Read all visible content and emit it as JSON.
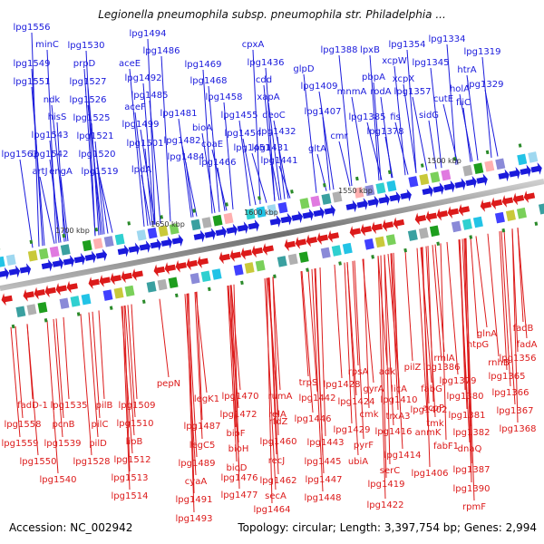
{
  "title": "Legionella pneumophila subsp. pneumophila str. Philadelphia ...",
  "accession_label": "Accession: NC_002942",
  "topology_label": "Topology: circular; Length: 3,397,754 bp; Genes: 2,994",
  "colors": {
    "forward_strand": "#1a1adc",
    "reverse_strand": "#dc1a1a",
    "backbone": "#8a8a8a",
    "marker": "#2a8a2a"
  },
  "scale_marks": [
    "1700 kbp",
    "1650 kbp",
    "1600 kbp",
    "1550 kbp",
    "1500 kbp"
  ],
  "forward_genes": [
    "lpg1556",
    "minC",
    "lpg1549",
    "lpg1551",
    "ndk",
    "hisS",
    "lpg1543",
    "lpg1542",
    "lpg1563",
    "artJ",
    "engA",
    "lpg1530",
    "prpD",
    "lpg1527",
    "lpg1526",
    "lpg1525",
    "lpg1521",
    "lpg1520",
    "lpg1519",
    "aceE",
    "lpg1494",
    "lpg1486",
    "lpg1492",
    "aceF",
    "lpg1499",
    "lpg1501",
    "lpdA",
    "lpg1485",
    "lpg1481",
    "lpg1482",
    "lpg1484",
    "lpg1469",
    "lpg1468",
    "bioA",
    "coaE",
    "lpg1466",
    "lpg1458",
    "lpg1455",
    "lpg1454",
    "lpg1451",
    "cpxA",
    "lpg1436",
    "cdd",
    "xapA",
    "deoC",
    "lpg1432",
    "lpg1431",
    "lpg1441",
    "glpD",
    "lpg1409",
    "lpg1407",
    "gltA",
    "cmr",
    "lpg1388",
    "mnmA",
    "pbpA",
    "lpxB",
    "rodA",
    "fis",
    "lpg1385",
    "lpg1378",
    "lpg1354",
    "xcpW",
    "xcpX",
    "lpg1357",
    "sidG",
    "lpg1334",
    "lpg1345",
    "holA",
    "cutE",
    "fliC",
    "lpg1319",
    "htrA",
    "lpg1329"
  ],
  "reverse_genes": [
    "fadD-1",
    "lpg1558",
    "lpg1559",
    "lpg1550",
    "lpg1535",
    "pcnB",
    "lpg1539",
    "lpg1540",
    "pilB",
    "pilC",
    "pilD",
    "lpg1528",
    "lpg1509",
    "lpg1510",
    "lipB",
    "lpg1512",
    "lpg1513",
    "lpg1514",
    "pepN",
    "legK1",
    "lpg1487",
    "legC5",
    "lpg1489",
    "cyaA",
    "lpg1491",
    "lpg1493",
    "lpg1470",
    "lpg1472",
    "bioF",
    "bioH",
    "bioD",
    "lpg1476",
    "lpg1477",
    "rumA",
    "relA",
    "rfdZ",
    "lpg1460",
    "recJ",
    "lpg1462",
    "secA",
    "lpg1464",
    "trpS",
    "lpg1442",
    "lpg1446",
    "lpg1443",
    "lpg1445",
    "lpg1447",
    "lpg1448",
    "rpsA",
    "lpg1428",
    "lpg1424",
    "gyrA",
    "cmk",
    "lpg1429",
    "pyrF",
    "ubiA",
    "lpg1419",
    "lpg1422",
    "adk",
    "licA",
    "lpg1410",
    "trxA3",
    "lpg1416",
    "lpg1414",
    "serC",
    "pilZ",
    "rmlA",
    "fabG",
    "acpP",
    "lpg1402",
    "tmk",
    "anmK",
    "fabF1",
    "lpg1406",
    "lpg1386",
    "lpg1379",
    "lpg1380",
    "lpg1381",
    "lpg1382",
    "dnaQ",
    "lpg1387",
    "lpg1390",
    "rpmF",
    "glnA",
    "fadB",
    "htpG",
    "fadA",
    "rnhB",
    "lpg1356",
    "lpg1365",
    "lpg1366",
    "lpg1367",
    "lpg1368"
  ]
}
